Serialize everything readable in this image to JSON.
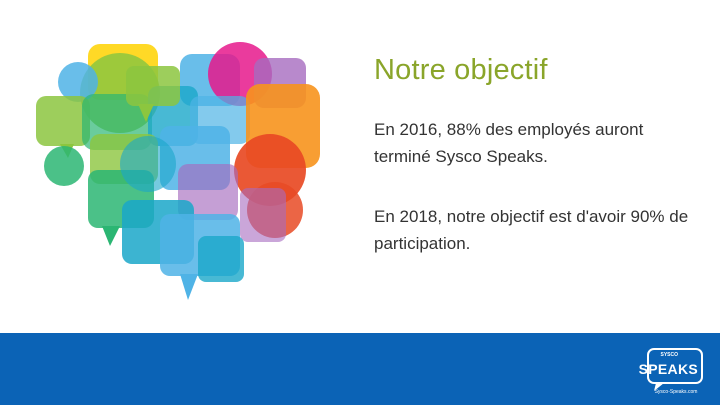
{
  "slide": {
    "title": "Notre objectif",
    "paragraphs": [
      "En 2016, 88% des employés auront terminé Sysco Speaks.",
      "En 2018, notre objectif est d'avoir 90% de participation."
    ]
  },
  "footer": {
    "logo": {
      "top_text": "SYSCO",
      "main_text": "SPEAKS",
      "small_text": "Sysco-Speaks.com"
    }
  },
  "colors": {
    "title": "#8aa52a",
    "body_text": "#333333",
    "footer_bar": "#0b63b6",
    "art_palette": [
      "#4fb3e6",
      "#8cc63f",
      "#e6198c",
      "#f7941d",
      "#e84a24",
      "#2bb673",
      "#1aa7c9",
      "#a66bbf",
      "#ffd200"
    ]
  },
  "icons": {
    "art": "speech-bubble-heart-icon",
    "logo": "sysco-speaks-logo-icon"
  }
}
